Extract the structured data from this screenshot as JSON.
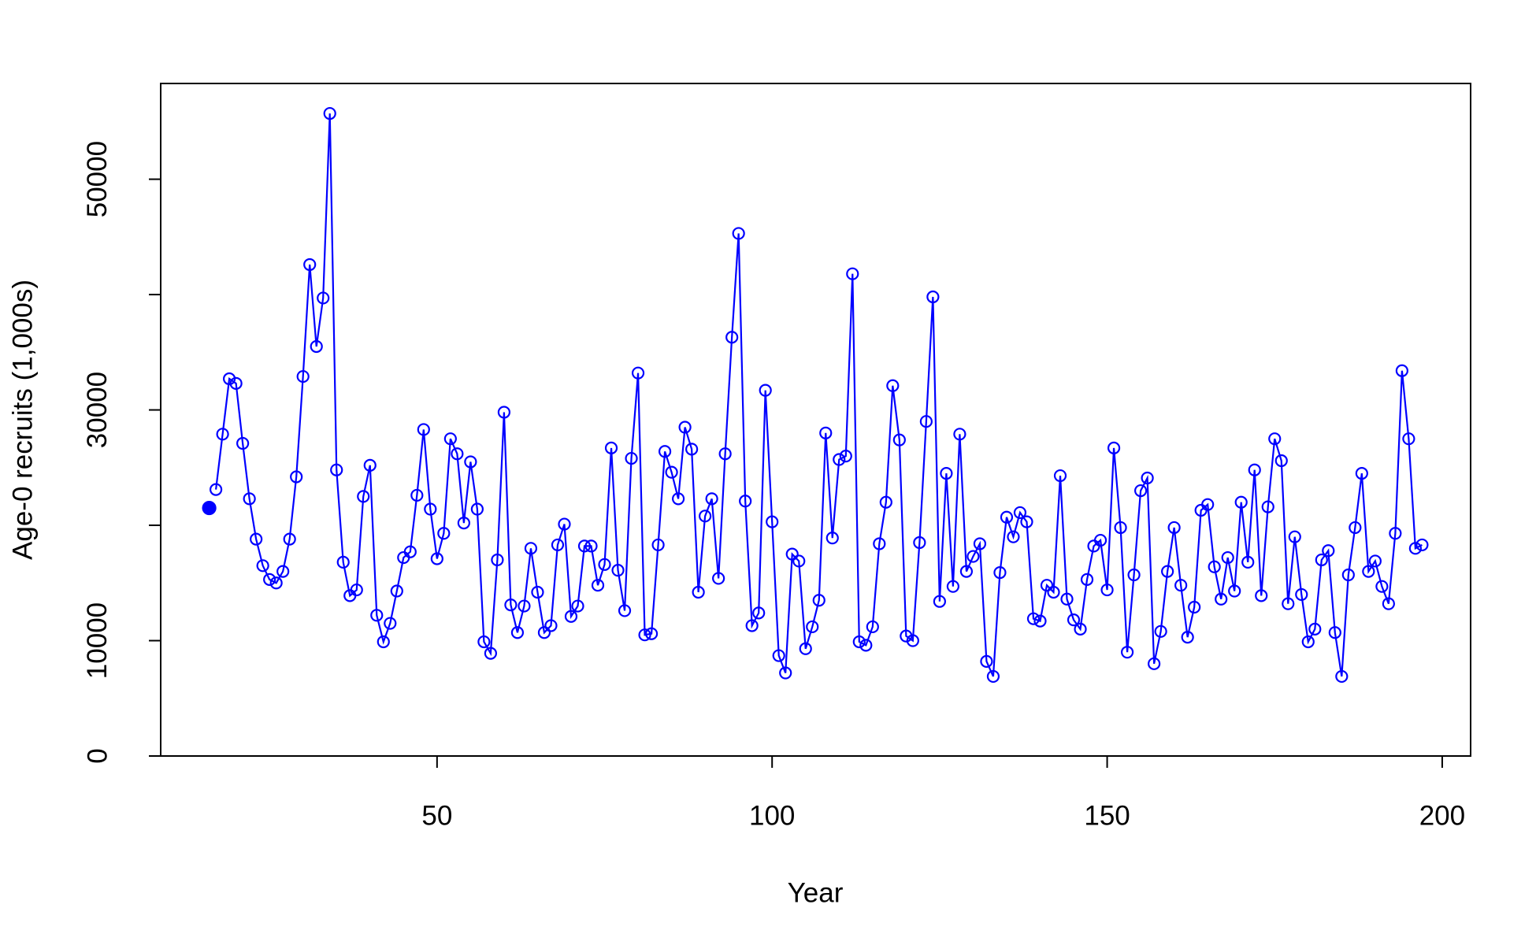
{
  "chart_data": {
    "type": "line",
    "x_label": "Year",
    "y_label": "Age-0 recruits (1,000s)",
    "xlim": [
      8.76,
      204.24
    ],
    "ylim": [
      0,
      58300
    ],
    "xticks": [
      50,
      100,
      150,
      200
    ],
    "yticks": [
      0,
      10000,
      {
        "value": 20000,
        "label": null
      },
      30000,
      {
        "value": 40000,
        "label": null
      },
      50000
    ],
    "series": [
      {
        "color": "#0000ff",
        "marker": "filled",
        "line": false,
        "x": [
          16
        ],
        "values": [
          21500
        ]
      },
      {
        "color": "#0000ff",
        "marker": "open",
        "line": true,
        "x": [
          17,
          18,
          19,
          20,
          21,
          22,
          23,
          24,
          25,
          26,
          27,
          28,
          29,
          30,
          31,
          32,
          33,
          34,
          35,
          36,
          37,
          38,
          39,
          40,
          41,
          42,
          43,
          44,
          45,
          46,
          47,
          48,
          49,
          50,
          51,
          52,
          53,
          54,
          55,
          56,
          57,
          58,
          59,
          60,
          61,
          62,
          63,
          64,
          65,
          66,
          67,
          68,
          69,
          70,
          71,
          72,
          73,
          74,
          75,
          76,
          77,
          78,
          79,
          80,
          81,
          82,
          83,
          84,
          85,
          86,
          87,
          88,
          89,
          90,
          91,
          92,
          93,
          94,
          95,
          96,
          97,
          98,
          99,
          100,
          101,
          102,
          103,
          104,
          105,
          106,
          107,
          108,
          109,
          110,
          111,
          112,
          113,
          114,
          115,
          116,
          117,
          118,
          119,
          120,
          121,
          122,
          123,
          124,
          125,
          126,
          127,
          128,
          129,
          130,
          131,
          132,
          133,
          134,
          135,
          136,
          137,
          138,
          139,
          140,
          141,
          142,
          143,
          144,
          145,
          146,
          147,
          148,
          149,
          150,
          151,
          152,
          153,
          154,
          155,
          156,
          157,
          158,
          159,
          160,
          161,
          162,
          163,
          164,
          165,
          166,
          167,
          168,
          169,
          170,
          171,
          172,
          173,
          174,
          175,
          176,
          177,
          178,
          179,
          180,
          181,
          182,
          183,
          184,
          185,
          186,
          187,
          188,
          189,
          190,
          191,
          192,
          193,
          194,
          195,
          196,
          197
        ],
        "values": [
          23100,
          27900,
          32700,
          32300,
          27100,
          22300,
          18800,
          16500,
          15300,
          15000,
          16000,
          18800,
          24200,
          32900,
          42600,
          35500,
          39700,
          55700,
          24800,
          16800,
          13900,
          14400,
          22500,
          25200,
          12200,
          9900,
          11500,
          14300,
          17200,
          17700,
          22600,
          28300,
          21400,
          17100,
          19300,
          27500,
          26200,
          20200,
          25500,
          21400,
          9900,
          8900,
          17000,
          29800,
          13100,
          10700,
          13000,
          18000,
          14200,
          10700,
          11300,
          18300,
          20100,
          12100,
          13000,
          18200,
          18200,
          14800,
          16600,
          26700,
          16100,
          12600,
          25800,
          33200,
          10500,
          10600,
          18300,
          26400,
          24600,
          22300,
          28500,
          26600,
          14200,
          20800,
          22300,
          15400,
          26200,
          36300,
          45300,
          22100,
          11300,
          12400,
          31700,
          20300,
          8700,
          7200,
          17500,
          16900,
          9300,
          11200,
          13500,
          28000,
          18900,
          25700,
          26000,
          41800,
          9900,
          9600,
          11200,
          18400,
          22000,
          32100,
          27400,
          10400,
          10000,
          18500,
          29000,
          39800,
          13400,
          24500,
          14700,
          27900,
          16000,
          17300,
          18400,
          8200,
          6900,
          15900,
          20700,
          19000,
          21100,
          20300,
          11900,
          11700,
          14800,
          14200,
          24300,
          13600,
          11800,
          11000,
          15300,
          18200,
          18700,
          14400,
          26700,
          19800,
          9000,
          15700,
          23000,
          24100,
          8000,
          10800,
          16000,
          19800,
          14800,
          10300,
          12900,
          21300,
          21800,
          16400,
          13600,
          17200,
          14300,
          22000,
          16800,
          24800,
          13900,
          21600,
          27500,
          25600,
          13200,
          19000,
          14000,
          9900,
          11000,
          17000,
          17800,
          10700,
          6900,
          15700,
          19800,
          24500,
          16000,
          16900,
          14700,
          13200,
          19300,
          33400,
          27500,
          18000,
          18300
        ]
      }
    ]
  }
}
